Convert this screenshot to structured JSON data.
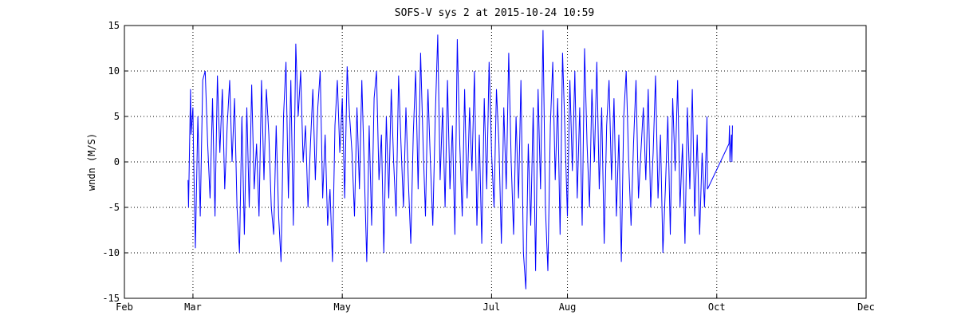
{
  "chart_data": {
    "type": "line",
    "title": "SOFS-V sys 2 at 2015-10-24 10:59",
    "xlabel": "",
    "ylabel": "wndn (M/S)",
    "xlim": [
      "2015-02-01",
      "2015-12-01"
    ],
    "ylim": [
      -15,
      15
    ],
    "x_ticks": [
      "Feb",
      "Mar",
      "May",
      "Jul",
      "Aug",
      "Oct",
      "Dec"
    ],
    "x_tick_dates": [
      "2015-02-01",
      "2015-03-01",
      "2015-05-01",
      "2015-07-01",
      "2015-08-01",
      "2015-10-01",
      "2015-12-01"
    ],
    "y_ticks": [
      15,
      10,
      5,
      0,
      -5,
      -10,
      -15
    ],
    "grid": true,
    "series": [
      {
        "color": "#0000ff",
        "points": [
          [
            "2015-02-27",
            -2
          ],
          [
            "2015-02-27",
            -5
          ],
          [
            "2015-02-28",
            8
          ],
          [
            "2015-02-28",
            3
          ],
          [
            "2015-03-01",
            6
          ],
          [
            "2015-03-01",
            2
          ],
          [
            "2015-03-02",
            -9.5
          ],
          [
            "2015-03-03",
            5
          ],
          [
            "2015-03-04",
            -6
          ],
          [
            "2015-03-05",
            9
          ],
          [
            "2015-03-06",
            10
          ],
          [
            "2015-03-07",
            2
          ],
          [
            "2015-03-08",
            -4
          ],
          [
            "2015-03-09",
            7
          ],
          [
            "2015-03-10",
            -6
          ],
          [
            "2015-03-11",
            9.5
          ],
          [
            "2015-03-12",
            1
          ],
          [
            "2015-03-13",
            8
          ],
          [
            "2015-03-14",
            -3
          ],
          [
            "2015-03-15",
            4
          ],
          [
            "2015-03-16",
            9
          ],
          [
            "2015-03-17",
            0
          ],
          [
            "2015-03-18",
            7
          ],
          [
            "2015-03-19",
            -5
          ],
          [
            "2015-03-20",
            -10
          ],
          [
            "2015-03-21",
            5
          ],
          [
            "2015-03-22",
            -8
          ],
          [
            "2015-03-23",
            6
          ],
          [
            "2015-03-24",
            -5
          ],
          [
            "2015-03-25",
            8.5
          ],
          [
            "2015-03-26",
            -3
          ],
          [
            "2015-03-27",
            2
          ],
          [
            "2015-03-28",
            -6
          ],
          [
            "2015-03-29",
            9
          ],
          [
            "2015-03-30",
            -2
          ],
          [
            "2015-03-31",
            8
          ],
          [
            "2015-04-01",
            3
          ],
          [
            "2015-04-02",
            -5
          ],
          [
            "2015-04-03",
            -8
          ],
          [
            "2015-04-04",
            4
          ],
          [
            "2015-04-05",
            -6
          ],
          [
            "2015-04-06",
            -11
          ],
          [
            "2015-04-07",
            5
          ],
          [
            "2015-04-08",
            11
          ],
          [
            "2015-04-09",
            -4
          ],
          [
            "2015-04-10",
            9
          ],
          [
            "2015-04-11",
            -7
          ],
          [
            "2015-04-12",
            13
          ],
          [
            "2015-04-13",
            5
          ],
          [
            "2015-04-14",
            10
          ],
          [
            "2015-04-15",
            0
          ],
          [
            "2015-04-16",
            4
          ],
          [
            "2015-04-17",
            -5
          ],
          [
            "2015-04-18",
            2
          ],
          [
            "2015-04-19",
            8
          ],
          [
            "2015-04-20",
            -2
          ],
          [
            "2015-04-21",
            6
          ],
          [
            "2015-04-22",
            10
          ],
          [
            "2015-04-23",
            -4
          ],
          [
            "2015-04-24",
            3
          ],
          [
            "2015-04-25",
            -7
          ],
          [
            "2015-04-26",
            -3
          ],
          [
            "2015-04-27",
            -11
          ],
          [
            "2015-04-28",
            4
          ],
          [
            "2015-04-29",
            9
          ],
          [
            "2015-04-30",
            1
          ],
          [
            "2015-05-01",
            7
          ],
          [
            "2015-05-02",
            -4
          ],
          [
            "2015-05-03",
            10.5
          ],
          [
            "2015-05-04",
            5
          ],
          [
            "2015-05-05",
            1
          ],
          [
            "2015-05-06",
            -6
          ],
          [
            "2015-05-07",
            6
          ],
          [
            "2015-05-08",
            -3
          ],
          [
            "2015-05-09",
            9
          ],
          [
            "2015-05-10",
            -1
          ],
          [
            "2015-05-11",
            -11
          ],
          [
            "2015-05-12",
            4
          ],
          [
            "2015-05-13",
            -7
          ],
          [
            "2015-05-14",
            7
          ],
          [
            "2015-05-15",
            10
          ],
          [
            "2015-05-16",
            -2
          ],
          [
            "2015-05-17",
            3
          ],
          [
            "2015-05-18",
            -10
          ],
          [
            "2015-05-19",
            5
          ],
          [
            "2015-05-20",
            -4
          ],
          [
            "2015-05-21",
            8
          ],
          [
            "2015-05-22",
            0
          ],
          [
            "2015-05-23",
            -6
          ],
          [
            "2015-05-24",
            9.5
          ],
          [
            "2015-05-25",
            2
          ],
          [
            "2015-05-26",
            -5
          ],
          [
            "2015-05-27",
            6
          ],
          [
            "2015-05-28",
            -2
          ],
          [
            "2015-05-29",
            -9
          ],
          [
            "2015-05-30",
            3
          ],
          [
            "2015-05-31",
            10
          ],
          [
            "2015-06-01",
            -3
          ],
          [
            "2015-06-02",
            12
          ],
          [
            "2015-06-03",
            2
          ],
          [
            "2015-06-04",
            -6
          ],
          [
            "2015-06-05",
            8
          ],
          [
            "2015-06-06",
            0
          ],
          [
            "2015-06-07",
            -7
          ],
          [
            "2015-06-08",
            5
          ],
          [
            "2015-06-09",
            14
          ],
          [
            "2015-06-10",
            -2
          ],
          [
            "2015-06-11",
            6
          ],
          [
            "2015-06-12",
            -5
          ],
          [
            "2015-06-13",
            9
          ],
          [
            "2015-06-14",
            -3
          ],
          [
            "2015-06-15",
            4
          ],
          [
            "2015-06-16",
            -8
          ],
          [
            "2015-06-17",
            13.5
          ],
          [
            "2015-06-18",
            2
          ],
          [
            "2015-06-19",
            -6
          ],
          [
            "2015-06-20",
            8
          ],
          [
            "2015-06-21",
            -4
          ],
          [
            "2015-06-22",
            6
          ],
          [
            "2015-06-23",
            -1
          ],
          [
            "2015-06-24",
            10
          ],
          [
            "2015-06-25",
            -7
          ],
          [
            "2015-06-26",
            3
          ],
          [
            "2015-06-27",
            -9
          ],
          [
            "2015-06-28",
            7
          ],
          [
            "2015-06-29",
            -3
          ],
          [
            "2015-06-30",
            11
          ],
          [
            "2015-07-01",
            1
          ],
          [
            "2015-07-02",
            -5
          ],
          [
            "2015-07-03",
            8
          ],
          [
            "2015-07-04",
            2
          ],
          [
            "2015-07-05",
            -9
          ],
          [
            "2015-07-06",
            6
          ],
          [
            "2015-07-07",
            -3
          ],
          [
            "2015-07-08",
            12
          ],
          [
            "2015-07-09",
            0
          ],
          [
            "2015-07-10",
            -8
          ],
          [
            "2015-07-11",
            5
          ],
          [
            "2015-07-12",
            -4
          ],
          [
            "2015-07-13",
            9
          ],
          [
            "2015-07-14",
            -10
          ],
          [
            "2015-07-15",
            -14
          ],
          [
            "2015-07-16",
            2
          ],
          [
            "2015-07-17",
            -7
          ],
          [
            "2015-07-18",
            6
          ],
          [
            "2015-07-19",
            -12
          ],
          [
            "2015-07-20",
            8
          ],
          [
            "2015-07-21",
            -3
          ],
          [
            "2015-07-22",
            14.5
          ],
          [
            "2015-07-23",
            -5
          ],
          [
            "2015-07-24",
            -12
          ],
          [
            "2015-07-25",
            4
          ],
          [
            "2015-07-26",
            11
          ],
          [
            "2015-07-27",
            -2
          ],
          [
            "2015-07-28",
            7
          ],
          [
            "2015-07-29",
            -8
          ],
          [
            "2015-07-30",
            12
          ],
          [
            "2015-07-31",
            3
          ],
          [
            "2015-08-01",
            -6
          ],
          [
            "2015-08-02",
            9
          ],
          [
            "2015-08-03",
            -1
          ],
          [
            "2015-08-04",
            10
          ],
          [
            "2015-08-05",
            -4
          ],
          [
            "2015-08-06",
            6
          ],
          [
            "2015-08-07",
            -7
          ],
          [
            "2015-08-08",
            12.5
          ],
          [
            "2015-08-09",
            2
          ],
          [
            "2015-08-10",
            -5
          ],
          [
            "2015-08-11",
            8
          ],
          [
            "2015-08-12",
            0
          ],
          [
            "2015-08-13",
            11
          ],
          [
            "2015-08-14",
            -3
          ],
          [
            "2015-08-15",
            6
          ],
          [
            "2015-08-16",
            -9
          ],
          [
            "2015-08-17",
            4
          ],
          [
            "2015-08-18",
            9
          ],
          [
            "2015-08-19",
            -2
          ],
          [
            "2015-08-20",
            7
          ],
          [
            "2015-08-21",
            -6
          ],
          [
            "2015-08-22",
            3
          ],
          [
            "2015-08-23",
            -11
          ],
          [
            "2015-08-24",
            5
          ],
          [
            "2015-08-25",
            10
          ],
          [
            "2015-08-26",
            0
          ],
          [
            "2015-08-27",
            -7
          ],
          [
            "2015-08-28",
            2
          ],
          [
            "2015-08-29",
            9
          ],
          [
            "2015-08-30",
            -4
          ],
          [
            "2015-08-31",
            1
          ],
          [
            "2015-09-01",
            6
          ],
          [
            "2015-09-02",
            -2
          ],
          [
            "2015-09-03",
            8
          ],
          [
            "2015-09-04",
            -5
          ],
          [
            "2015-09-05",
            1
          ],
          [
            "2015-09-06",
            9.5
          ],
          [
            "2015-09-07",
            -4
          ],
          [
            "2015-09-08",
            3
          ],
          [
            "2015-09-09",
            -10
          ],
          [
            "2015-09-10",
            -3
          ],
          [
            "2015-09-11",
            5
          ],
          [
            "2015-09-12",
            -8
          ],
          [
            "2015-09-13",
            7
          ],
          [
            "2015-09-14",
            -1
          ],
          [
            "2015-09-15",
            9
          ],
          [
            "2015-09-16",
            -5
          ],
          [
            "2015-09-17",
            2
          ],
          [
            "2015-09-18",
            -9
          ],
          [
            "2015-09-19",
            6
          ],
          [
            "2015-09-20",
            -3
          ],
          [
            "2015-09-21",
            8
          ],
          [
            "2015-09-22",
            -6
          ],
          [
            "2015-09-23",
            3
          ],
          [
            "2015-09-24",
            -8
          ],
          [
            "2015-09-25",
            1
          ],
          [
            "2015-09-26",
            -5
          ],
          [
            "2015-09-27",
            5
          ],
          [
            "2015-09-27",
            -3
          ],
          [
            "2015-10-06",
            2
          ],
          [
            "2015-10-06",
            4
          ],
          [
            "2015-10-06",
            0
          ],
          [
            "2015-10-07",
            3
          ],
          [
            "2015-10-07",
            0
          ],
          [
            "2015-10-07",
            4
          ]
        ]
      }
    ]
  }
}
